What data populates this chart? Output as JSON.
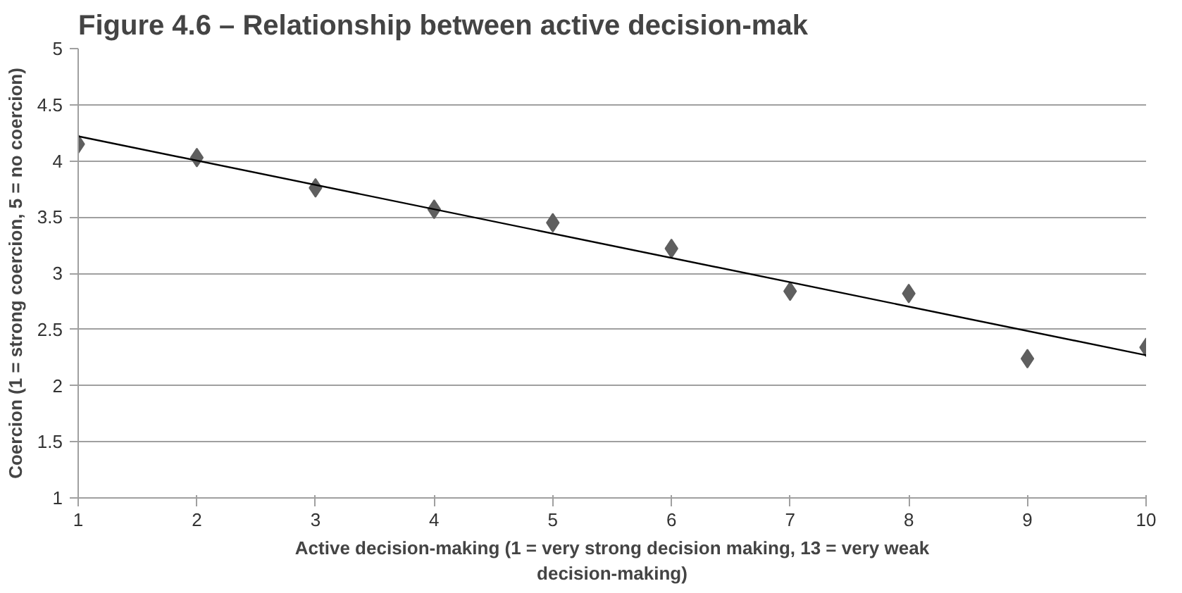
{
  "chart_data": {
    "type": "scatter",
    "title": "Figure 4.6 – Relationship between active decision-mak",
    "xlabel": "Active decision-making (1 = very strong decision making, 13 = very weak decision-making)",
    "ylabel": "Coercion (1 = strong coercion, 5 = no coercion)",
    "x": [
      1,
      2,
      3,
      4,
      5,
      6,
      7,
      8,
      9,
      10
    ],
    "series": [
      {
        "color": "#5f5f5f",
        "marker": "diamond",
        "values": [
          4.15,
          4.03,
          3.76,
          3.57,
          3.45,
          3.22,
          2.84,
          2.82,
          2.24,
          2.34
        ]
      },
      {
        "type": "line",
        "color": "#000000",
        "x": [
          1,
          10
        ],
        "values": [
          4.22,
          2.27
        ]
      }
    ],
    "xlim": [
      1,
      10
    ],
    "xticks": [
      1,
      2,
      3,
      4,
      5,
      6,
      7,
      8,
      9,
      10
    ],
    "ylim": [
      1,
      5
    ],
    "yticks": [
      1,
      1.5,
      2,
      2.5,
      3,
      3.5,
      4,
      4.5,
      5
    ],
    "grid": "y"
  }
}
